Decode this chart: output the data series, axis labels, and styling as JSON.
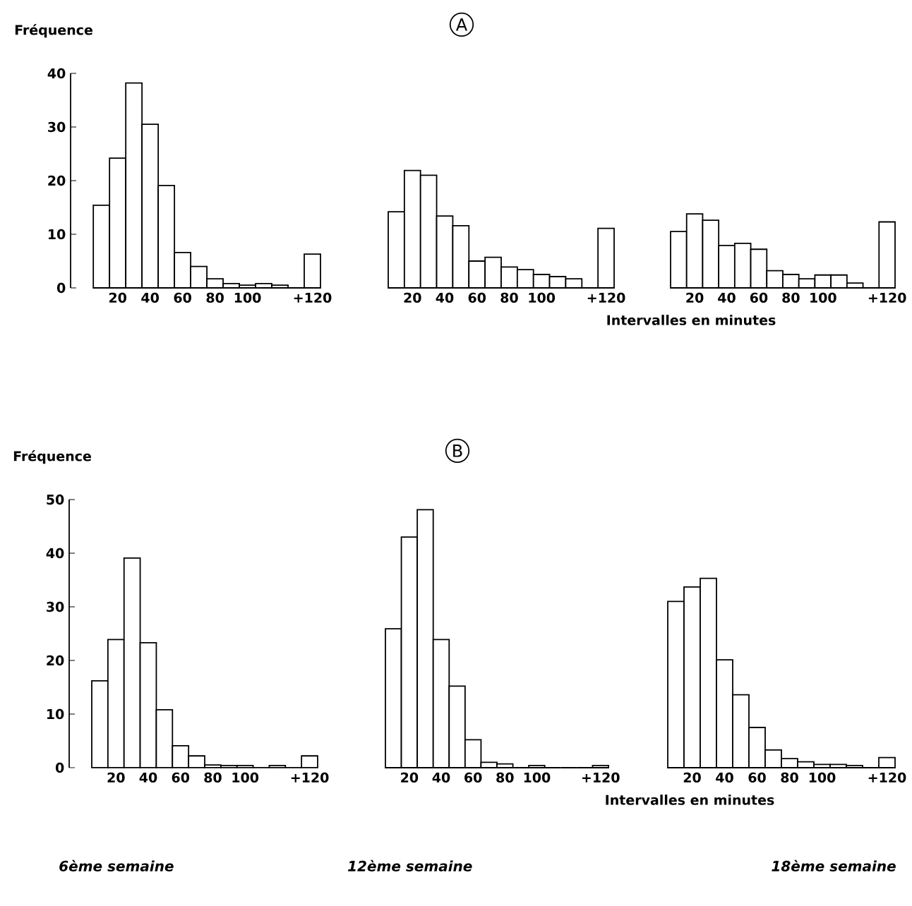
{
  "chart_data": [
    {
      "type": "bar",
      "ylabel": "Fréquence",
      "categories": [
        null,
        "20",
        null,
        "40",
        null,
        "60",
        null,
        "80",
        null,
        "100",
        null,
        null,
        null,
        "+120"
      ],
      "values": [
        15.4,
        24.2,
        38.2,
        30.5,
        19.1,
        6.6,
        4.0,
        1.7,
        0.8,
        0.5,
        0.8,
        0.5,
        0,
        6.3
      ],
      "color": "#ffffff",
      "ylim": [
        0,
        40
      ],
      "yticks": [
        0,
        10,
        20,
        30,
        40
      ],
      "grid": false
    },
    {
      "type": "bar",
      "title": "A",
      "categories": [
        null,
        "20",
        null,
        "40",
        null,
        "60",
        null,
        "80",
        null,
        "100",
        null,
        null,
        null,
        "+120"
      ],
      "values": [
        14.2,
        21.9,
        21.0,
        13.4,
        11.6,
        5.0,
        5.7,
        3.9,
        3.4,
        2.5,
        2.1,
        1.7,
        0,
        11.1
      ],
      "color": "#ffffff",
      "ylim": [
        0,
        40
      ],
      "tick_labels": "x",
      "grid": false
    },
    {
      "type": "bar",
      "xlabel": "Intervalles en minutes",
      "categories": [
        null,
        "20",
        null,
        "40",
        null,
        "60",
        null,
        "80",
        null,
        "100",
        null,
        null,
        null,
        "+120"
      ],
      "values": [
        10.5,
        13.8,
        12.6,
        7.9,
        8.3,
        7.2,
        3.2,
        2.5,
        1.7,
        2.4,
        2.4,
        0.9,
        0,
        12.3
      ],
      "color": "#ffffff",
      "ylim": [
        0,
        40
      ],
      "tick_labels": "x",
      "grid": false
    },
    {
      "type": "bar",
      "ylabel": "Fréquence",
      "annotations": [
        "6ème semaine"
      ],
      "categories": [
        null,
        "20",
        null,
        "40",
        null,
        "60",
        null,
        "80",
        null,
        "100",
        null,
        null,
        null,
        "+120"
      ],
      "values": [
        16.2,
        23.9,
        39.1,
        23.3,
        10.8,
        4.1,
        2.2,
        0.5,
        0.4,
        0.4,
        0,
        0.4,
        0,
        2.2
      ],
      "color": "#ffffff",
      "ylim": [
        0,
        50
      ],
      "yticks": [
        0,
        10,
        20,
        30,
        40,
        50
      ],
      "grid": false
    },
    {
      "type": "bar",
      "title": "B",
      "annotations": [
        "12ème semaine"
      ],
      "categories": [
        null,
        "20",
        null,
        "40",
        null,
        "60",
        null,
        "80",
        null,
        "100",
        null,
        null,
        null,
        "+120"
      ],
      "values": [
        25.9,
        43.0,
        48.1,
        23.9,
        15.2,
        5.2,
        1.0,
        0.7,
        0,
        0.4,
        0,
        0,
        0,
        0.4
      ],
      "color": "#ffffff",
      "ylim": [
        0,
        50
      ],
      "tick_labels": "x",
      "grid": false
    },
    {
      "type": "bar",
      "xlabel": "Intervalles en minutes",
      "annotations": [
        "18ème semaine"
      ],
      "categories": [
        null,
        "20",
        null,
        "40",
        null,
        "60",
        null,
        "80",
        null,
        "100",
        null,
        null,
        null,
        "+120"
      ],
      "values": [
        31.0,
        33.7,
        35.3,
        20.1,
        13.6,
        7.5,
        3.3,
        1.7,
        1.1,
        0.6,
        0.6,
        0.4,
        0,
        1.9
      ],
      "color": "#ffffff",
      "ylim": [
        0,
        50
      ],
      "tick_labels": "x",
      "grid": false
    }
  ]
}
